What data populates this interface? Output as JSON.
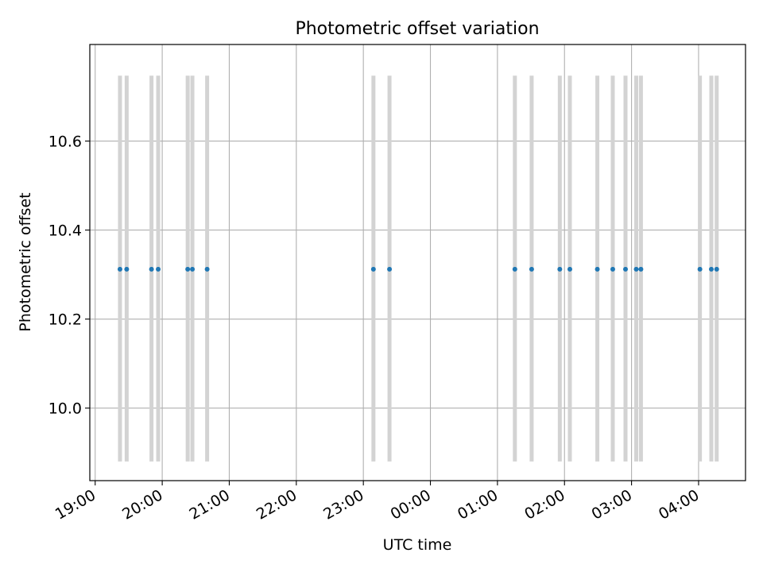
{
  "chart_data": {
    "type": "scatter",
    "title": "Photometric offset variation",
    "xlabel": "UTC time",
    "ylabel": "Photometric offset",
    "x_range_hours": [
      18.92,
      28.7
    ],
    "ylim": [
      9.837,
      10.817
    ],
    "grid": true,
    "x_ticks": [
      {
        "hour": 19,
        "label": "19:00"
      },
      {
        "hour": 20,
        "label": "20:00"
      },
      {
        "hour": 21,
        "label": "21:00"
      },
      {
        "hour": 22,
        "label": "22:00"
      },
      {
        "hour": 23,
        "label": "23:00"
      },
      {
        "hour": 24,
        "label": "00:00"
      },
      {
        "hour": 25,
        "label": "01:00"
      },
      {
        "hour": 26,
        "label": "02:00"
      },
      {
        "hour": 27,
        "label": "03:00"
      },
      {
        "hour": 28,
        "label": "04:00"
      }
    ],
    "y_ticks": [
      {
        "value": 10.0,
        "label": "10.0"
      },
      {
        "value": 10.2,
        "label": "10.2"
      },
      {
        "value": 10.4,
        "label": "10.4"
      },
      {
        "value": 10.6,
        "label": "10.6"
      }
    ],
    "error_range": [
      9.88,
      10.747
    ],
    "series": [
      {
        "name": "photometric offset",
        "color": "#1f77b4",
        "errorbar_color": "#d3d3d3",
        "x_hours": [
          19.37,
          19.47,
          19.84,
          19.94,
          20.38,
          20.45,
          20.67,
          23.15,
          23.39,
          25.26,
          25.51,
          25.93,
          26.08,
          26.49,
          26.72,
          26.91,
          27.07,
          27.14,
          28.02,
          28.19,
          28.27
        ],
        "y": [
          10.312,
          10.312,
          10.312,
          10.312,
          10.312,
          10.312,
          10.312,
          10.312,
          10.312,
          10.312,
          10.312,
          10.312,
          10.312,
          10.312,
          10.312,
          10.312,
          10.312,
          10.312,
          10.312,
          10.312,
          10.312
        ]
      }
    ]
  }
}
